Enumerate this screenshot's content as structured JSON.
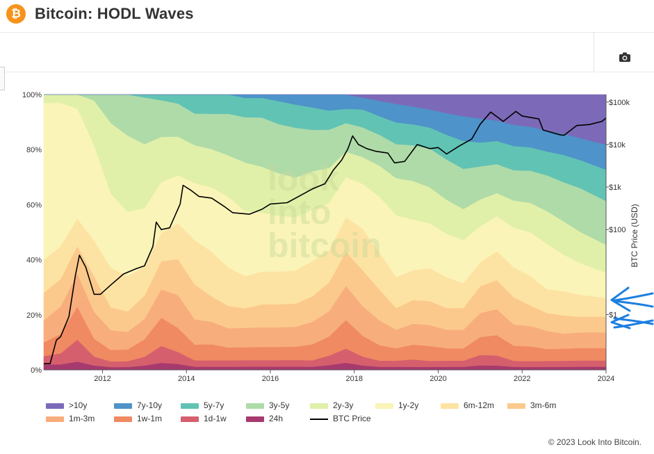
{
  "header": {
    "logo_symbol": "₿",
    "title": "Bitcoin: HODL Waves"
  },
  "toolbar": {
    "camera_icon": "camera-icon"
  },
  "footer": {
    "copyright": "© 2023 Look Into Bitcoin."
  },
  "watermark": [
    "look",
    "into",
    "bitcoin"
  ],
  "chart_data": {
    "type": "area",
    "title": "Bitcoin: HODL Waves",
    "stacked": true,
    "x_range": [
      2010.6,
      2024.0
    ],
    "x_ticks": [
      2012,
      2014,
      2016,
      2018,
      2020,
      2022,
      2024
    ],
    "x_tick_labels": [
      "2012",
      "2014",
      "2016",
      "2018",
      "2020",
      "2022",
      "2024"
    ],
    "y_range": [
      0,
      100
    ],
    "y_ticks": [
      0,
      20,
      40,
      60,
      80,
      100
    ],
    "y_tick_labels": [
      "0%",
      "20%",
      "40%",
      "60%",
      "80%",
      "100%"
    ],
    "y2_label": "BTC Price (USD)",
    "y2_scale": "log",
    "y2_range": [
      0.05,
      150000
    ],
    "y2_ticks": [
      1,
      100,
      1000,
      10000,
      100000
    ],
    "y2_tick_labels": [
      "$1",
      "$100",
      "$1k",
      "$10k",
      "$100k"
    ],
    "x": [
      2010.6,
      2011.0,
      2011.4,
      2011.8,
      2012.2,
      2012.6,
      2013.0,
      2013.4,
      2013.8,
      2014.2,
      2014.6,
      2015.0,
      2015.4,
      2015.8,
      2016.2,
      2016.6,
      2017.0,
      2017.4,
      2017.8,
      2018.2,
      2018.6,
      2019.0,
      2019.4,
      2019.8,
      2020.2,
      2020.6,
      2021.0,
      2021.4,
      2021.8,
      2022.2,
      2022.6,
      2023.0,
      2023.4,
      2024.0
    ],
    "series": [
      {
        "name": "24h",
        "color": "#a63a6e",
        "values": [
          2,
          2,
          3,
          1.5,
          1,
          1,
          1.5,
          2.5,
          2,
          1,
          1,
          1,
          1,
          1,
          1,
          1,
          1,
          1.5,
          2.5,
          1.5,
          1,
          1,
          1,
          1,
          1,
          1,
          1.5,
          1.5,
          1,
          1,
          1,
          1,
          1,
          1
        ]
      },
      {
        "name": "1d-1w",
        "color": "#d65f6d",
        "values": [
          3,
          4,
          8,
          3,
          2,
          2,
          3,
          6,
          4,
          2,
          2,
          2,
          2,
          2,
          2,
          2,
          2,
          3,
          5,
          3,
          2,
          2,
          2.5,
          2,
          2,
          2,
          3.5,
          3.5,
          2,
          2,
          2,
          2,
          2,
          2
        ]
      },
      {
        "name": "1w-1m",
        "color": "#f08a62",
        "values": [
          5,
          7,
          12,
          6,
          4,
          4,
          6,
          10,
          8,
          5,
          5,
          4,
          4,
          4,
          4,
          4,
          5,
          6,
          10,
          7,
          5,
          4,
          5,
          5,
          4,
          4,
          6,
          7,
          5,
          5,
          4,
          4,
          4,
          4
        ]
      },
      {
        "name": "1m-3m",
        "color": "#f8ad7c",
        "values": [
          8,
          10,
          12,
          9,
          7,
          6,
          7,
          10,
          11,
          8,
          7,
          6,
          6,
          6,
          6,
          6,
          7,
          8,
          12,
          10,
          8,
          6,
          7,
          7,
          6,
          6,
          8,
          9,
          7,
          7,
          6,
          5,
          5,
          5
        ]
      },
      {
        "name": "3m-6m",
        "color": "#fcc98c",
        "values": [
          10,
          10,
          10,
          12,
          8,
          7,
          8,
          10,
          12,
          11,
          8,
          7,
          6,
          7,
          7,
          7,
          8,
          9,
          12,
          12,
          10,
          7,
          8,
          8,
          7,
          7,
          9,
          10,
          9,
          7,
          6,
          6,
          5,
          5
        ]
      },
      {
        "name": "6m-12m",
        "color": "#fde3a3",
        "values": [
          12,
          12,
          10,
          12,
          14,
          12,
          10,
          10,
          12,
          14,
          14,
          12,
          10,
          10,
          10,
          10,
          11,
          10,
          12,
          14,
          12,
          10,
          10,
          11,
          10,
          8,
          8,
          10,
          10,
          10,
          8,
          8,
          7,
          6
        ]
      },
      {
        "name": "1y-2y",
        "color": "#fbf4b8",
        "values": [
          57,
          52,
          40,
          32,
          26,
          22,
          20,
          18,
          16,
          18,
          20,
          22,
          20,
          18,
          17,
          16,
          16,
          15,
          14,
          15,
          18,
          20,
          17,
          15,
          14,
          14,
          12,
          12,
          13,
          15,
          15,
          12,
          10,
          8
        ]
      },
      {
        "name": "2y-3y",
        "color": "#e1f0a9",
        "values": [
          3,
          3,
          5,
          15,
          25,
          26,
          22,
          16,
          13,
          12,
          12,
          13,
          15,
          14,
          13,
          12,
          12,
          11,
          9,
          9,
          10,
          12,
          13,
          12,
          11,
          10,
          9,
          8,
          9,
          10,
          11,
          11,
          10,
          9
        ]
      },
      {
        "name": "3y-5y",
        "color": "#afdba9",
        "values": [
          0,
          0,
          0,
          2,
          10,
          14,
          16,
          13,
          11,
          10,
          11,
          13,
          14,
          15,
          15,
          15,
          13,
          12,
          10,
          10,
          10,
          11,
          12,
          13,
          13,
          13,
          11,
          10,
          10,
          11,
          12,
          13,
          14,
          14
        ]
      },
      {
        "name": "5y-7y",
        "color": "#61c3b4",
        "values": [
          0,
          0,
          0,
          0,
          0,
          0,
          1,
          2,
          3,
          6,
          6,
          6,
          6,
          6,
          7,
          7,
          7,
          6,
          5,
          6,
          6,
          7,
          7,
          7,
          8,
          9,
          8,
          8,
          8,
          8,
          8,
          9,
          9,
          10
        ]
      },
      {
        "name": "7y-10y",
        "color": "#4e93c9",
        "values": [
          0,
          0,
          0,
          0,
          0,
          0,
          0,
          0,
          0,
          0,
          0,
          0,
          1,
          1,
          2,
          3,
          4,
          5,
          5,
          4,
          5,
          6,
          6,
          6,
          7,
          8,
          8,
          7,
          7,
          7,
          7,
          7,
          7,
          8
        ]
      },
      {
        "name": ">10y",
        "color": "#7c6ab8",
        "values": [
          0,
          0,
          0,
          0,
          0,
          0,
          0,
          0,
          0,
          0,
          0,
          0,
          0,
          0,
          0,
          0,
          0,
          0,
          0,
          1,
          2,
          3,
          4,
          5,
          6,
          7,
          8,
          9,
          10,
          11,
          12,
          13,
          14,
          16
        ]
      }
    ],
    "price_series": {
      "name": "BTC Price",
      "color": "#000000",
      "x": [
        2010.6,
        2010.75,
        2010.9,
        2011.0,
        2011.2,
        2011.35,
        2011.45,
        2011.6,
        2011.8,
        2011.95,
        2012.2,
        2012.5,
        2012.8,
        2013.0,
        2013.2,
        2013.28,
        2013.4,
        2013.6,
        2013.85,
        2013.92,
        2014.1,
        2014.3,
        2014.6,
        2014.9,
        2015.1,
        2015.5,
        2015.8,
        2016.0,
        2016.4,
        2016.7,
        2017.0,
        2017.3,
        2017.5,
        2017.7,
        2017.85,
        2017.96,
        2018.1,
        2018.3,
        2018.5,
        2018.8,
        2018.96,
        2019.2,
        2019.5,
        2019.8,
        2020.0,
        2020.2,
        2020.5,
        2020.8,
        2021.0,
        2021.25,
        2021.55,
        2021.85,
        2022.0,
        2022.4,
        2022.5,
        2022.9,
        2023.0,
        2023.3,
        2023.6,
        2023.9,
        2024.0
      ],
      "values": [
        0.07,
        0.07,
        0.25,
        0.3,
        0.9,
        8,
        25,
        13,
        3,
        3,
        5,
        9,
        12,
        14,
        40,
        150,
        100,
        110,
        400,
        1100,
        850,
        600,
        550,
        350,
        250,
        230,
        300,
        400,
        430,
        620,
        900,
        1200,
        2500,
        4300,
        8000,
        16000,
        10000,
        8000,
        7000,
        6300,
        3700,
        4000,
        10000,
        8000,
        8500,
        6000,
        9200,
        13500,
        30000,
        58000,
        35000,
        60000,
        47000,
        40000,
        22000,
        17000,
        16500,
        28000,
        29500,
        35000,
        42000
      ]
    }
  },
  "legend": [
    {
      "label": ">10y",
      "color": "#7c6ab8"
    },
    {
      "label": "7y-10y",
      "color": "#4e93c9"
    },
    {
      "label": "5y-7y",
      "color": "#61c3b4"
    },
    {
      "label": "3y-5y",
      "color": "#afdba9"
    },
    {
      "label": "2y-3y",
      "color": "#e1f0a9"
    },
    {
      "label": "1y-2y",
      "color": "#fbf4b8"
    },
    {
      "label": "6m-12m",
      "color": "#fde3a3"
    },
    {
      "label": "3m-6m",
      "color": "#fcc98c"
    },
    {
      "label": "1m-3m",
      "color": "#f8ad7c"
    },
    {
      "label": "1w-1m",
      "color": "#f08a62"
    },
    {
      "label": "1d-1w",
      "color": "#d65f6d"
    },
    {
      "label": "24h",
      "color": "#a63a6e"
    },
    {
      "label": "BTC Price",
      "color": "#000000",
      "line": true
    }
  ]
}
